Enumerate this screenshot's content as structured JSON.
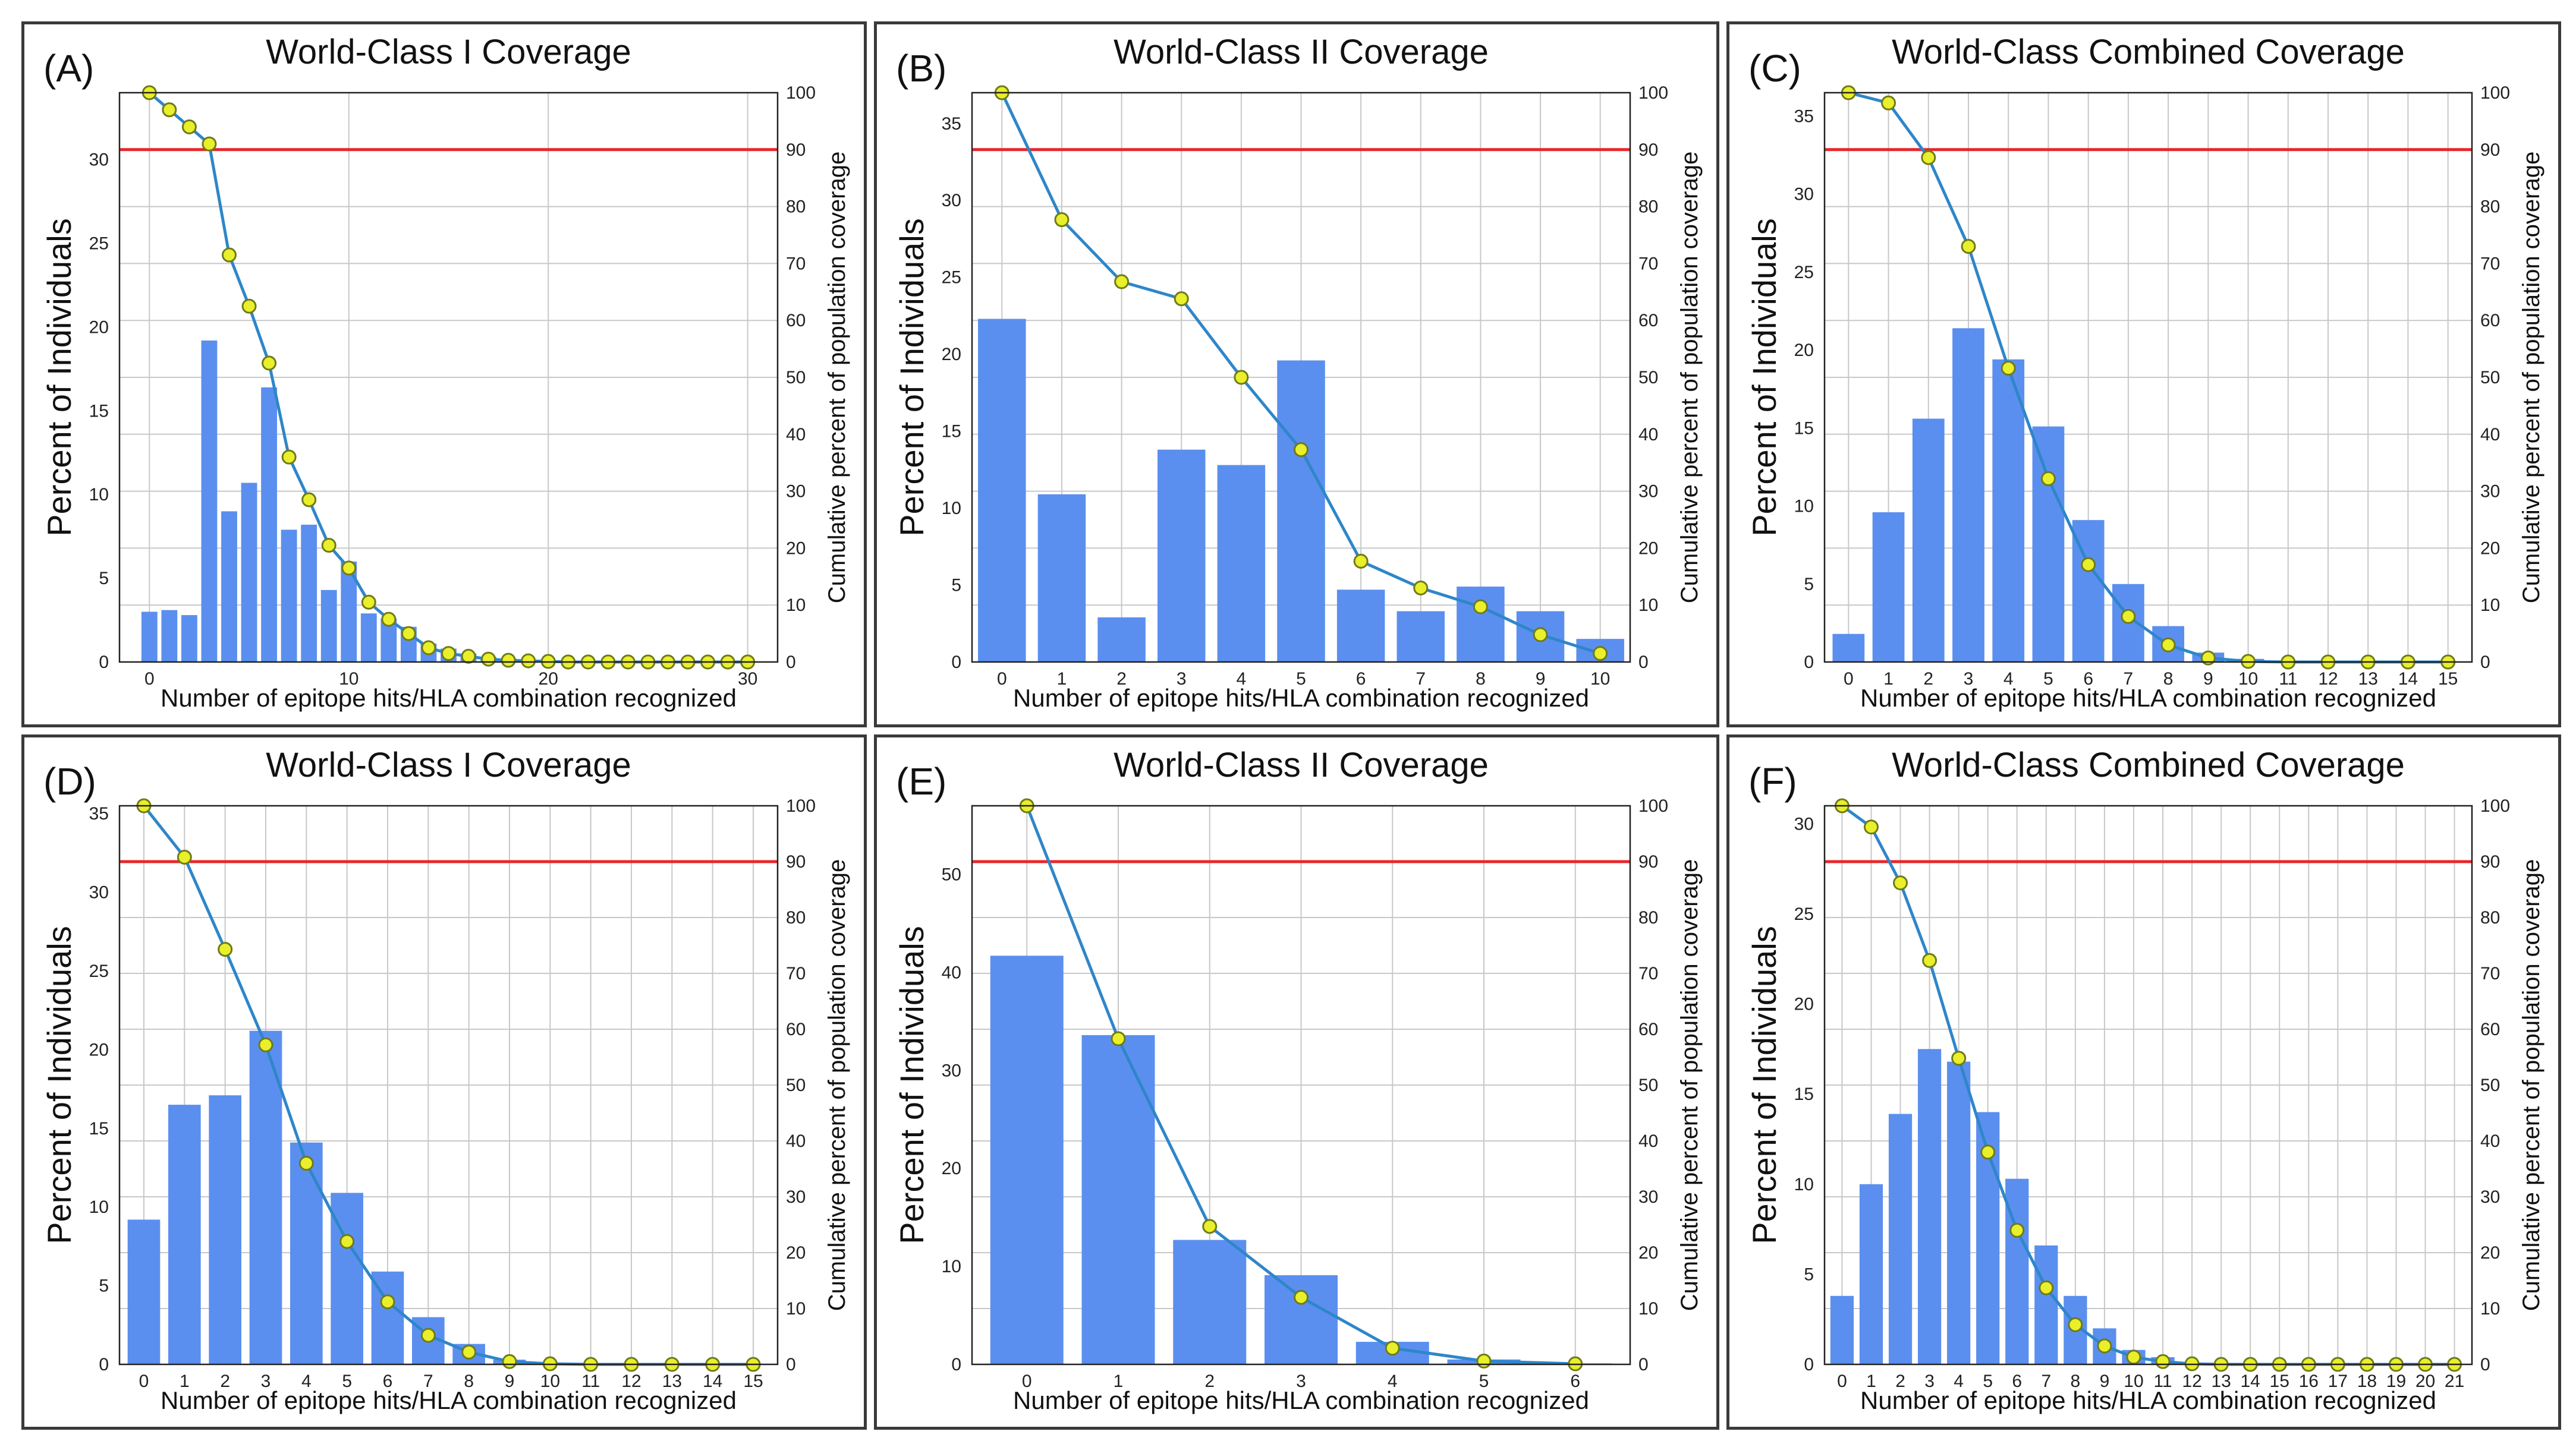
{
  "figure": {
    "x_axis_label": "Number of epitope hits/HLA combination recognized",
    "y_axis_label": "Percent of Individuals",
    "y2_axis_label": "Cumulative percent of population coverage"
  },
  "chart_data": [
    {
      "panel_label": "(A)",
      "title": "World-Class I Coverage",
      "type": "bar",
      "x": [
        0,
        1,
        2,
        3,
        4,
        5,
        6,
        7,
        8,
        9,
        10,
        11,
        12,
        13,
        14,
        15,
        16,
        17,
        18,
        19,
        20,
        21,
        22,
        23,
        24,
        25,
        26,
        27,
        28,
        29,
        30
      ],
      "values": [
        3.0,
        3.1,
        2.8,
        19.2,
        9.0,
        10.7,
        16.4,
        7.9,
        8.2,
        4.3,
        6.0,
        2.9,
        2.6,
        2.1,
        1.1,
        0.8,
        0.5,
        0.3,
        0.2,
        0.1,
        0.1,
        0.05,
        0.05,
        0,
        0,
        0,
        0,
        0,
        0,
        0,
        0
      ],
      "cumulative": [
        100,
        97,
        94,
        91,
        71.5,
        62.5,
        52.5,
        36,
        28.5,
        20.5,
        16.5,
        10.5,
        7.5,
        5,
        2.5,
        1.5,
        1,
        0.5,
        0.3,
        0.2,
        0.1,
        0,
        0,
        0,
        0,
        0,
        0,
        0,
        0,
        0,
        0
      ],
      "xlim": [
        -1.5,
        31.5
      ],
      "ylim": [
        0,
        34
      ],
      "y2lim": [
        0,
        100
      ],
      "reference_line": 90,
      "x_ticks": [
        0,
        10,
        20,
        30
      ],
      "y_ticks": [
        0,
        5,
        10,
        15,
        20,
        25,
        30
      ],
      "y2_ticks": [
        0,
        10,
        20,
        30,
        40,
        50,
        60,
        70,
        80,
        90,
        100
      ]
    },
    {
      "panel_label": "(B)",
      "title": "World-Class II Coverage",
      "type": "bar",
      "x": [
        0,
        1,
        2,
        3,
        4,
        5,
        6,
        7,
        8,
        9,
        10
      ],
      "values": [
        22.3,
        10.9,
        2.9,
        13.8,
        12.8,
        19.6,
        4.7,
        3.3,
        4.9,
        3.3,
        1.5
      ],
      "cumulative": [
        100,
        77.7,
        66.8,
        63.8,
        50,
        37.3,
        17.7,
        13,
        9.7,
        4.8,
        1.5
      ],
      "xlim": [
        -0.5,
        10.5
      ],
      "ylim": [
        0,
        37
      ],
      "y2lim": [
        0,
        100
      ],
      "reference_line": 90,
      "x_ticks": [
        0,
        1,
        2,
        3,
        4,
        5,
        6,
        7,
        8,
        9,
        10
      ],
      "y_ticks": [
        0,
        5,
        10,
        15,
        20,
        25,
        30,
        35
      ],
      "y2_ticks": [
        0,
        10,
        20,
        30,
        40,
        50,
        60,
        70,
        80,
        90,
        100
      ]
    },
    {
      "panel_label": "(C)",
      "title": "World-Class Combined Coverage",
      "type": "bar",
      "x": [
        0,
        1,
        2,
        3,
        4,
        5,
        6,
        7,
        8,
        9,
        10,
        11,
        12,
        13,
        14,
        15
      ],
      "values": [
        1.8,
        9.6,
        15.6,
        21.4,
        19.4,
        15.1,
        9.1,
        5.0,
        2.3,
        0.6,
        0.2,
        0.05,
        0,
        0,
        0,
        0
      ],
      "cumulative": [
        100,
        98.2,
        88.6,
        73,
        51.6,
        32.2,
        17.1,
        8,
        3,
        0.7,
        0.1,
        0,
        0,
        0,
        0,
        0
      ],
      "xlim": [
        -0.6,
        15.6
      ],
      "ylim": [
        0,
        36.5
      ],
      "y2lim": [
        0,
        100
      ],
      "reference_line": 90,
      "x_ticks": [
        0,
        1,
        2,
        3,
        4,
        5,
        6,
        7,
        8,
        9,
        10,
        11,
        12,
        13,
        14,
        15
      ],
      "y_ticks": [
        0,
        5,
        10,
        15,
        20,
        25,
        30,
        35
      ],
      "y2_ticks": [
        0,
        10,
        20,
        30,
        40,
        50,
        60,
        70,
        80,
        90,
        100
      ]
    },
    {
      "panel_label": "(D)",
      "title": "World-Class I Coverage",
      "type": "bar",
      "x": [
        0,
        1,
        2,
        3,
        4,
        5,
        6,
        7,
        8,
        9,
        10,
        11,
        12,
        13,
        14,
        15
      ],
      "values": [
        9.2,
        16.5,
        17.1,
        21.2,
        14.1,
        10.9,
        5.9,
        3.0,
        1.3,
        0.3,
        0.1,
        0.05,
        0,
        0,
        0,
        0
      ],
      "cumulative": [
        100,
        90.8,
        74.3,
        57.2,
        36,
        22,
        11.2,
        5.2,
        2.2,
        0.5,
        0.1,
        0,
        0,
        0,
        0,
        0
      ],
      "xlim": [
        -0.6,
        15.6
      ],
      "ylim": [
        0,
        35.5
      ],
      "y2lim": [
        0,
        100
      ],
      "reference_line": 90,
      "x_ticks": [
        0,
        1,
        2,
        3,
        4,
        5,
        6,
        7,
        8,
        9,
        10,
        11,
        12,
        13,
        14,
        15
      ],
      "y_ticks": [
        0,
        5,
        10,
        15,
        20,
        25,
        30,
        35
      ],
      "y2_ticks": [
        0,
        10,
        20,
        30,
        40,
        50,
        60,
        70,
        80,
        90,
        100
      ]
    },
    {
      "panel_label": "(E)",
      "title": "World-Class II Coverage",
      "type": "bar",
      "x": [
        0,
        1,
        2,
        3,
        4,
        5,
        6
      ],
      "values": [
        41.7,
        33.6,
        12.7,
        9.1,
        2.3,
        0.5,
        0.1
      ],
      "cumulative": [
        100,
        58.3,
        24.7,
        12,
        2.9,
        0.6,
        0.1
      ],
      "xlim": [
        -0.6,
        6.6
      ],
      "ylim": [
        0,
        57
      ],
      "y2lim": [
        0,
        100
      ],
      "reference_line": 90,
      "x_ticks": [
        0,
        1,
        2,
        3,
        4,
        5,
        6
      ],
      "y_ticks": [
        0,
        10,
        20,
        30,
        40,
        50
      ],
      "y2_ticks": [
        0,
        10,
        20,
        30,
        40,
        50,
        60,
        70,
        80,
        90,
        100
      ]
    },
    {
      "panel_label": "(F)",
      "title": "World-Class Combined Coverage",
      "type": "bar",
      "x": [
        0,
        1,
        2,
        3,
        4,
        5,
        6,
        7,
        8,
        9,
        10,
        11,
        12,
        13,
        14,
        15,
        16,
        17,
        18,
        19,
        20,
        21
      ],
      "values": [
        3.8,
        10.0,
        13.9,
        17.5,
        16.8,
        14.0,
        10.3,
        6.6,
        3.8,
        2.0,
        0.8,
        0.4,
        0.1,
        0.05,
        0,
        0,
        0,
        0,
        0,
        0,
        0,
        0
      ],
      "cumulative": [
        100,
        96.2,
        86.2,
        72.3,
        54.8,
        38,
        24,
        13.7,
        7.1,
        3.3,
        1.3,
        0.5,
        0.1,
        0,
        0,
        0,
        0,
        0,
        0,
        0,
        0,
        0
      ],
      "xlim": [
        -0.6,
        21.6
      ],
      "ylim": [
        0,
        31
      ],
      "y2lim": [
        0,
        100
      ],
      "reference_line": 90,
      "x_ticks": [
        0,
        1,
        2,
        3,
        4,
        5,
        6,
        7,
        8,
        9,
        10,
        11,
        12,
        13,
        14,
        15,
        16,
        17,
        18,
        19,
        20,
        21
      ],
      "y_ticks": [
        0,
        5,
        10,
        15,
        20,
        25,
        30
      ],
      "y2_ticks": [
        0,
        10,
        20,
        30,
        40,
        50,
        60,
        70,
        80,
        90,
        100
      ]
    }
  ]
}
